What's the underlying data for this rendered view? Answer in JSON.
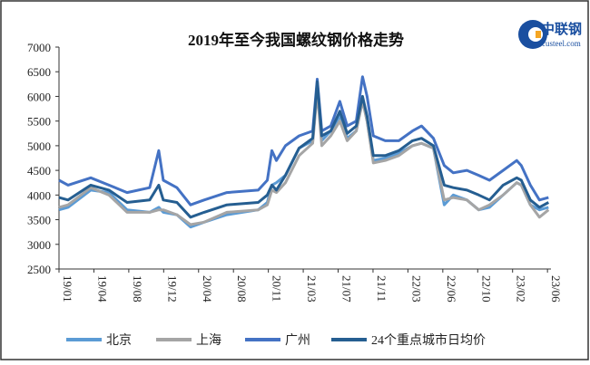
{
  "logo": {
    "brand": "中联钢",
    "site": "custeel.com"
  },
  "chart_data": {
    "type": "line",
    "title": "2019年至今我国螺纹钢价格走势",
    "xlabel": "",
    "ylabel": "",
    "ylim": [
      2500,
      7000
    ],
    "yticks": [
      2500,
      3000,
      3500,
      4000,
      4500,
      5000,
      5500,
      6000,
      6500,
      7000
    ],
    "xlim": [
      0,
      141
    ],
    "xtick_labels": [
      "19/01",
      "19/04",
      "19/08",
      "19/12",
      "20/04",
      "20/08",
      "20/11",
      "21/03",
      "21/07",
      "21/11",
      "22/03",
      "22/06",
      "22/10",
      "23/02",
      "23/06"
    ],
    "xtick_positions": [
      0,
      10,
      20,
      30,
      40,
      50,
      60,
      70,
      80,
      90,
      100,
      110,
      120,
      130,
      140
    ],
    "grid": false,
    "legend_position": "bottom",
    "x": [
      0,
      2.6,
      9.1,
      14.3,
      19.5,
      26,
      28.6,
      29.9,
      33.8,
      37.7,
      41.6,
      48.1,
      57.1,
      59.7,
      61,
      62.3,
      64.9,
      68.8,
      72.7,
      74,
      75.3,
      77.9,
      80.5,
      82.6,
      85.2,
      87,
      88.3,
      90.1,
      93.5,
      97.4,
      101.3,
      103.9,
      107.3,
      110.4,
      113,
      116.9,
      120.3,
      123.4,
      127.3,
      131.2,
      132.5,
      135.1,
      137.7,
      140.3
    ],
    "series": [
      {
        "name": "北京",
        "color": "#5b9bd5",
        "values": [
          3700,
          3750,
          4100,
          4050,
          3700,
          3650,
          3750,
          3650,
          3600,
          3350,
          3450,
          3600,
          3700,
          3850,
          4200,
          4250,
          4400,
          4950,
          5100,
          6150,
          5100,
          5300,
          5600,
          5150,
          5300,
          5950,
          5500,
          4700,
          4750,
          4850,
          5000,
          5050,
          4950,
          3800,
          4000,
          3900,
          3700,
          3750,
          4000,
          4250,
          4200,
          3800,
          3700,
          3750
        ]
      },
      {
        "name": "上海",
        "color": "#a5a5a5",
        "values": [
          3750,
          3800,
          4150,
          4000,
          3650,
          3650,
          3700,
          3700,
          3600,
          3400,
          3450,
          3650,
          3700,
          3800,
          4100,
          4050,
          4250,
          4800,
          5050,
          6100,
          5000,
          5200,
          5500,
          5100,
          5300,
          5900,
          5500,
          4650,
          4700,
          4800,
          5000,
          5050,
          4950,
          3900,
          3950,
          3900,
          3700,
          3800,
          4000,
          4250,
          4200,
          3800,
          3550,
          3700
        ]
      },
      {
        "name": "广州",
        "color": "#4472c4",
        "values": [
          4300,
          4200,
          4350,
          4200,
          4050,
          4150,
          4900,
          4300,
          4150,
          3800,
          3900,
          4050,
          4100,
          4300,
          4900,
          4700,
          5000,
          5200,
          5300,
          6350,
          5300,
          5400,
          5900,
          5400,
          5500,
          6400,
          6000,
          5200,
          5100,
          5100,
          5300,
          5400,
          5150,
          4600,
          4450,
          4500,
          4400,
          4300,
          4500,
          4700,
          4600,
          4200,
          3900,
          3950
        ]
      },
      {
        "name": "24个重点城市日均价",
        "color": "#255e91",
        "values": [
          3950,
          3900,
          4200,
          4100,
          3850,
          3900,
          4200,
          3900,
          3850,
          3550,
          3650,
          3800,
          3850,
          4000,
          4200,
          4100,
          4400,
          4950,
          5150,
          6300,
          5200,
          5300,
          5700,
          5250,
          5400,
          6000,
          5600,
          4800,
          4800,
          4900,
          5100,
          5150,
          5000,
          4200,
          4150,
          4100,
          4000,
          3900,
          4200,
          4350,
          4300,
          3900,
          3750,
          3850
        ]
      }
    ]
  }
}
